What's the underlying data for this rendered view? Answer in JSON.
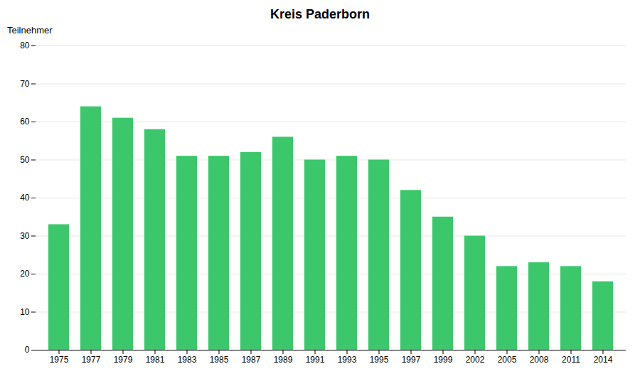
{
  "chart_data": {
    "type": "bar",
    "title": "Kreis Paderborn",
    "ylabel": "Teilnehmer",
    "categories": [
      "1975",
      "1977",
      "1979",
      "1981",
      "1983",
      "1985",
      "1987",
      "1989",
      "1991",
      "1993",
      "1995",
      "1997",
      "1999",
      "2002",
      "2005",
      "2008",
      "2011",
      "2014"
    ],
    "values": [
      33,
      64,
      61,
      58,
      51,
      51,
      52,
      56,
      50,
      51,
      50,
      42,
      35,
      30,
      22,
      23,
      22,
      18
    ],
    "color": "#3dc76c",
    "ylim": [
      0,
      80
    ],
    "yticks": [
      0,
      10,
      20,
      30,
      40,
      50,
      60,
      70,
      80
    ],
    "grid": true
  }
}
